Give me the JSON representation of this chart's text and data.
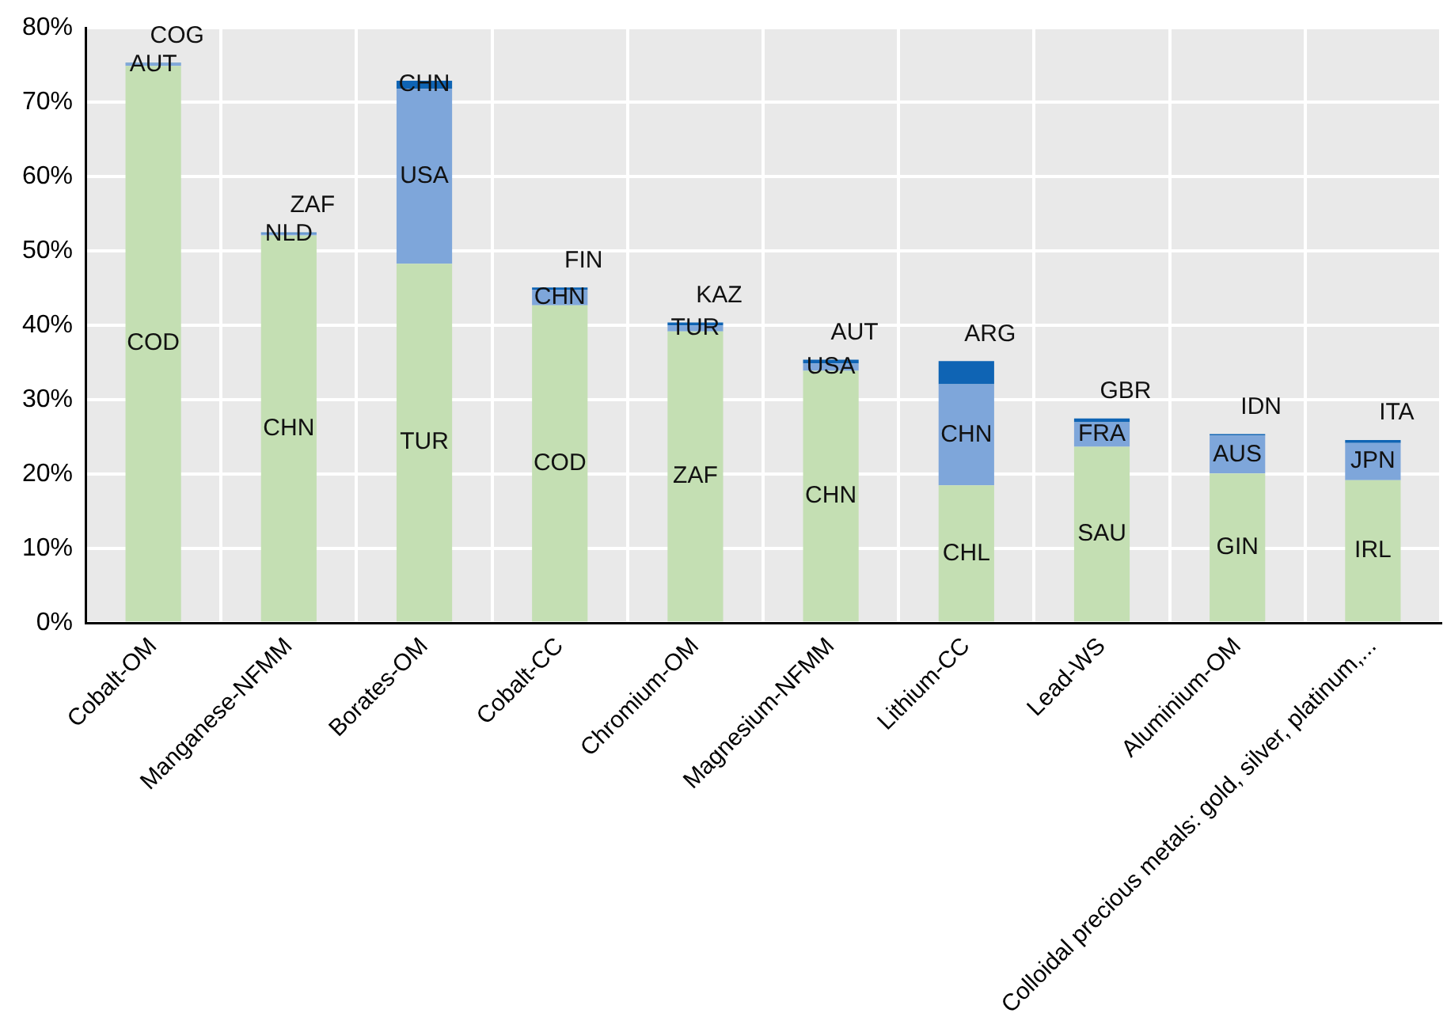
{
  "chart_data": {
    "type": "bar",
    "stacked": true,
    "grid": true,
    "categories": [
      "Cobalt-OM",
      "Manganese-NFMM",
      "Borates-OM",
      "Cobalt-CC",
      "Chromium-OM",
      "Magnesium-NFMM",
      "Lithium-CC",
      "Lead-WS",
      "Aluminium-OM",
      "Colloidal precious metals: gold, silver, platinum,..."
    ],
    "series": [
      {
        "color": "#c4dfb3",
        "values": [
          74.9,
          52.1,
          48.3,
          42.7,
          39.2,
          33.9,
          18.5,
          23.7,
          20.1,
          19.2
        ],
        "value_labels": [
          "COD",
          "CHN",
          "TUR",
          "COD",
          "ZAF",
          "CHN",
          "CHL",
          "SAU",
          "GIN",
          "IRL"
        ]
      },
      {
        "color": "#7ea6da",
        "values": [
          0.3,
          0.3,
          23.5,
          2.1,
          0.8,
          1.0,
          13.6,
          3.3,
          5.1,
          5.0
        ],
        "value_labels": [
          "AUT",
          "NLD",
          "USA",
          "CHN",
          "TUR",
          "USA",
          "CHN",
          "FRA",
          "AUS",
          "JPN"
        ]
      },
      {
        "color": "#0f64b4",
        "values": [
          0.1,
          0.1,
          1.1,
          0.3,
          0.4,
          0.5,
          3.1,
          0.5,
          0.2,
          0.4
        ],
        "value_labels": [
          "COG",
          "ZAF",
          "CHN",
          "FIN",
          "KAZ",
          "AUT",
          "ARG",
          "GBR",
          "IDN",
          "ITA"
        ]
      }
    ],
    "ylim": [
      0,
      80
    ],
    "yticks": [
      {
        "value": 0,
        "label": "0%"
      },
      {
        "value": 10,
        "label": "10%"
      },
      {
        "value": 20,
        "label": "20%"
      },
      {
        "value": 30,
        "label": "30%"
      },
      {
        "value": 40,
        "label": "40%"
      },
      {
        "value": 50,
        "label": "50%"
      },
      {
        "value": 60,
        "label": "60%"
      },
      {
        "value": 70,
        "label": "70%"
      },
      {
        "value": 80,
        "label": "80%"
      }
    ]
  }
}
